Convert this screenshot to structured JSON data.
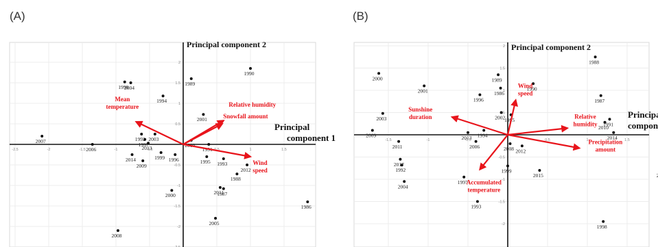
{
  "panels": [
    {
      "label": "(A)",
      "pc1_label": [
        "Principal",
        "component 1"
      ],
      "pc2_label": "Principal component 2",
      "x_ticks": [
        "-2.5",
        "-2",
        "-1.5",
        "-1",
        "-0.5",
        "0.5",
        "1",
        "1.5",
        "2"
      ],
      "y_ticks": [
        "2.5",
        "2",
        "1.5",
        "1",
        "0.5",
        "-0.5",
        "-1",
        "-1.5",
        "-2",
        "-2.5"
      ],
      "points": [
        {
          "year": "1990",
          "x": 1.0,
          "y": 1.85
        },
        {
          "year": "1989",
          "x": 0.12,
          "y": 1.6
        },
        {
          "year": "1998",
          "x": -0.87,
          "y": 1.52
        },
        {
          "year": "2004",
          "x": -0.78,
          "y": 1.5
        },
        {
          "year": "1994",
          "x": -0.3,
          "y": 1.18
        },
        {
          "year": "2001",
          "x": 0.3,
          "y": 0.73
        },
        {
          "year": "2007",
          "x": -2.1,
          "y": 0.2
        },
        {
          "year": "2003",
          "x": -0.42,
          "y": 0.25
        },
        {
          "year": "1992",
          "x": -0.62,
          "y": 0.25
        },
        {
          "year": "1997",
          "x": -0.57,
          "y": 0.12
        },
        {
          "year": "2013",
          "x": -0.52,
          "y": 0.03
        },
        {
          "year": "2010",
          "x": 0.12,
          "y": 0.1
        },
        {
          "year": "2006",
          "x": -1.35,
          "y": 0.0
        },
        {
          "year": "2014",
          "x": -0.76,
          "y": -0.25
        },
        {
          "year": "1999",
          "x": -0.33,
          "y": -0.2
        },
        {
          "year": "2009",
          "x": -0.6,
          "y": -0.4
        },
        {
          "year": "1996",
          "x": -0.12,
          "y": -0.25
        },
        {
          "year": "1991",
          "x": 0.38,
          "y": 0.0
        },
        {
          "year": "1995",
          "x": 0.35,
          "y": -0.3
        },
        {
          "year": "1993",
          "x": 0.6,
          "y": -0.35
        },
        {
          "year": "2012",
          "x": 0.95,
          "y": -0.5
        },
        {
          "year": "1988",
          "x": 0.8,
          "y": -0.72
        },
        {
          "year": "2011",
          "x": 0.55,
          "y": -1.05
        },
        {
          "year": "1987",
          "x": 0.6,
          "y": -1.08
        },
        {
          "year": "2000",
          "x": -0.17,
          "y": -1.12
        },
        {
          "year": "1986",
          "x": 1.85,
          "y": -1.4
        },
        {
          "year": "2005",
          "x": 0.48,
          "y": -1.8
        },
        {
          "year": "2008",
          "x": -0.97,
          "y": -2.1
        }
      ],
      "vectors": [
        {
          "label": [
            "Mean",
            "temperature"
          ],
          "x": -0.7,
          "y": 0.55
        },
        {
          "label": [
            "Relative humidity"
          ],
          "x": 0.6,
          "y": 0.58
        },
        {
          "label": [
            "Snowfall amount"
          ],
          "x": 0.58,
          "y": 0.5
        },
        {
          "label": [
            "Wind",
            "speed"
          ],
          "x": 1.0,
          "y": -0.3
        }
      ]
    },
    {
      "label": "(B)",
      "pc1_label": [
        "Principal",
        "component"
      ],
      "pc2_label": "Principal component 2",
      "x_ticks": [
        "-2",
        "-1.5",
        "-1",
        "-0.5",
        "0.5",
        "1",
        "1.5"
      ],
      "y_ticks": [
        "2",
        "1.5",
        "1",
        "0.5",
        "-0.5",
        "-1",
        "-1.5",
        "-2"
      ],
      "points": [
        {
          "year": "1988",
          "x": 1.1,
          "y": 1.75
        },
        {
          "year": "2000",
          "x": -1.62,
          "y": 1.38
        },
        {
          "year": "1989",
          "x": -0.12,
          "y": 1.35
        },
        {
          "year": "1990",
          "x": 0.32,
          "y": 1.15
        },
        {
          "year": "2001",
          "x": -1.05,
          "y": 1.1
        },
        {
          "year": "1986",
          "x": -0.09,
          "y": 1.05
        },
        {
          "year": "1996",
          "x": -0.35,
          "y": 0.9
        },
        {
          "year": "1987",
          "x": 1.17,
          "y": 0.88
        },
        {
          "year": "2003",
          "x": -1.57,
          "y": 0.48
        },
        {
          "year": "2002",
          "x": -0.08,
          "y": 0.5
        },
        {
          "year": "1995",
          "x": 0.04,
          "y": 0.45
        },
        {
          "year": "1991",
          "x": 1.28,
          "y": 0.35
        },
        {
          "year": "2010",
          "x": 1.22,
          "y": 0.28
        },
        {
          "year": "2014",
          "x": 1.33,
          "y": 0.05
        },
        {
          "year": "2009",
          "x": -1.7,
          "y": 0.1
        },
        {
          "year": "1994",
          "x": -0.3,
          "y": 0.1
        },
        {
          "year": "2013",
          "x": -0.5,
          "y": 0.05
        },
        {
          "year": "2006",
          "x": -0.4,
          "y": -0.15
        },
        {
          "year": "2011",
          "x": -1.37,
          "y": -0.15
        },
        {
          "year": "2008",
          "x": 0.03,
          "y": -0.2
        },
        {
          "year": "2012",
          "x": 0.18,
          "y": -0.25
        },
        {
          "year": "2017",
          "x": -1.35,
          "y": -0.55
        },
        {
          "year": "1992",
          "x": -1.33,
          "y": -0.68
        },
        {
          "year": "1999",
          "x": 0.0,
          "y": -0.7
        },
        {
          "year": "2015",
          "x": 0.4,
          "y": -0.8
        },
        {
          "year": "1997",
          "x": -0.55,
          "y": -0.95
        },
        {
          "year": "2004",
          "x": -1.3,
          "y": -1.05
        },
        {
          "year": "2005",
          "x": 1.95,
          "y": -0.8
        },
        {
          "year": "1993",
          "x": -0.38,
          "y": -1.5
        },
        {
          "year": "1998",
          "x": 1.2,
          "y": -1.95
        }
      ],
      "vectors": [
        {
          "label": [
            "Sunshine",
            "duration"
          ],
          "x": -0.7,
          "y": 0.4
        },
        {
          "label": [
            "Wind",
            "speed"
          ],
          "x": 0.1,
          "y": 0.78
        },
        {
          "label": [
            "Relative",
            "humidity"
          ],
          "x": 0.75,
          "y": 0.15
        },
        {
          "label": [
            "Precipitation",
            "amount"
          ],
          "x": 0.9,
          "y": -0.3
        },
        {
          "label": [
            "Accumulated",
            "temperature"
          ],
          "x": -0.35,
          "y": -0.78
        }
      ]
    }
  ]
}
